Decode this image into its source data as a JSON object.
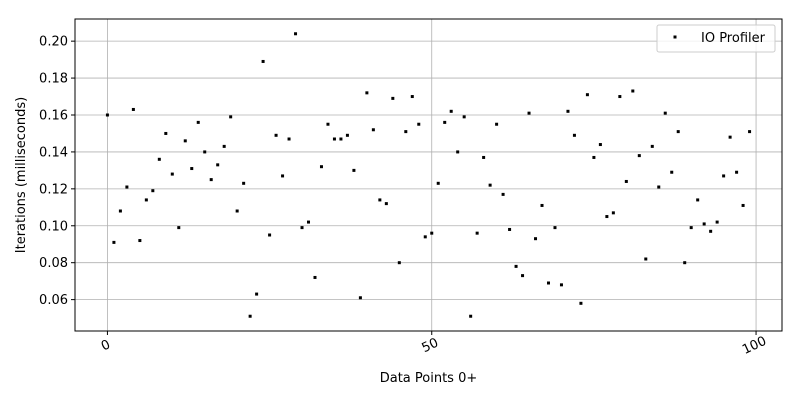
{
  "chart_data": {
    "type": "scatter",
    "title": "",
    "xlabel": "Data Points 0+",
    "ylabel": "Iterations (milliseconds)",
    "xlim": [
      -5,
      104
    ],
    "ylim": [
      0.043,
      0.212
    ],
    "xticks": [
      0,
      50,
      100
    ],
    "xtick_labels": [
      "0",
      "50",
      "100"
    ],
    "yticks": [
      0.06,
      0.08,
      0.1,
      0.12,
      0.14,
      0.16,
      0.18,
      0.2
    ],
    "ytick_labels": [
      "0.06",
      "0.08",
      "0.10",
      "0.12",
      "0.14",
      "0.16",
      "0.18",
      "0.20"
    ],
    "grid": true,
    "legend_position": "top-right",
    "series": [
      {
        "name": "IO Profiler",
        "color": "#000000",
        "x": [
          0,
          1,
          2,
          3,
          4,
          5,
          6,
          7,
          8,
          9,
          10,
          11,
          12,
          13,
          14,
          15,
          16,
          17,
          18,
          19,
          20,
          21,
          22,
          23,
          24,
          25,
          26,
          27,
          28,
          29,
          30,
          31,
          32,
          33,
          34,
          35,
          36,
          37,
          38,
          39,
          40,
          41,
          42,
          43,
          44,
          45,
          46,
          47,
          48,
          49,
          50,
          51,
          52,
          53,
          54,
          55,
          56,
          57,
          58,
          59,
          60,
          61,
          62,
          63,
          64,
          65,
          66,
          67,
          68,
          69,
          70,
          71,
          72,
          73,
          74,
          75,
          76,
          77,
          78,
          79,
          80,
          81,
          82,
          83,
          84,
          85,
          86,
          87,
          88,
          89,
          90,
          91,
          92,
          93,
          94,
          95,
          96,
          97,
          98,
          99
        ],
        "y": [
          0.16,
          0.091,
          0.108,
          0.121,
          0.163,
          0.092,
          0.114,
          0.119,
          0.136,
          0.15,
          0.128,
          0.099,
          0.146,
          0.131,
          0.156,
          0.14,
          0.125,
          0.133,
          0.143,
          0.159,
          0.108,
          0.123,
          0.051,
          0.063,
          0.189,
          0.095,
          0.149,
          0.127,
          0.147,
          0.204,
          0.099,
          0.102,
          0.072,
          0.132,
          0.155,
          0.147,
          0.147,
          0.149,
          0.13,
          0.061,
          0.172,
          0.152,
          0.114,
          0.112,
          0.169,
          0.08,
          0.151,
          0.17,
          0.155,
          0.094,
          0.096,
          0.123,
          0.156,
          0.162,
          0.14,
          0.159,
          0.051,
          0.096,
          0.137,
          0.122,
          0.155,
          0.117,
          0.098,
          0.078,
          0.073,
          0.161,
          0.093,
          0.111,
          0.069,
          0.099,
          0.068,
          0.162,
          0.149,
          0.058,
          0.171,
          0.137,
          0.144,
          0.105,
          0.107,
          0.17,
          0.124,
          0.173,
          0.138,
          0.082,
          0.143,
          0.121,
          0.161,
          0.129,
          0.151,
          0.08,
          0.099,
          0.114,
          0.101,
          0.097,
          0.102,
          0.127,
          0.148,
          0.129,
          0.111,
          0.151
        ]
      }
    ]
  }
}
